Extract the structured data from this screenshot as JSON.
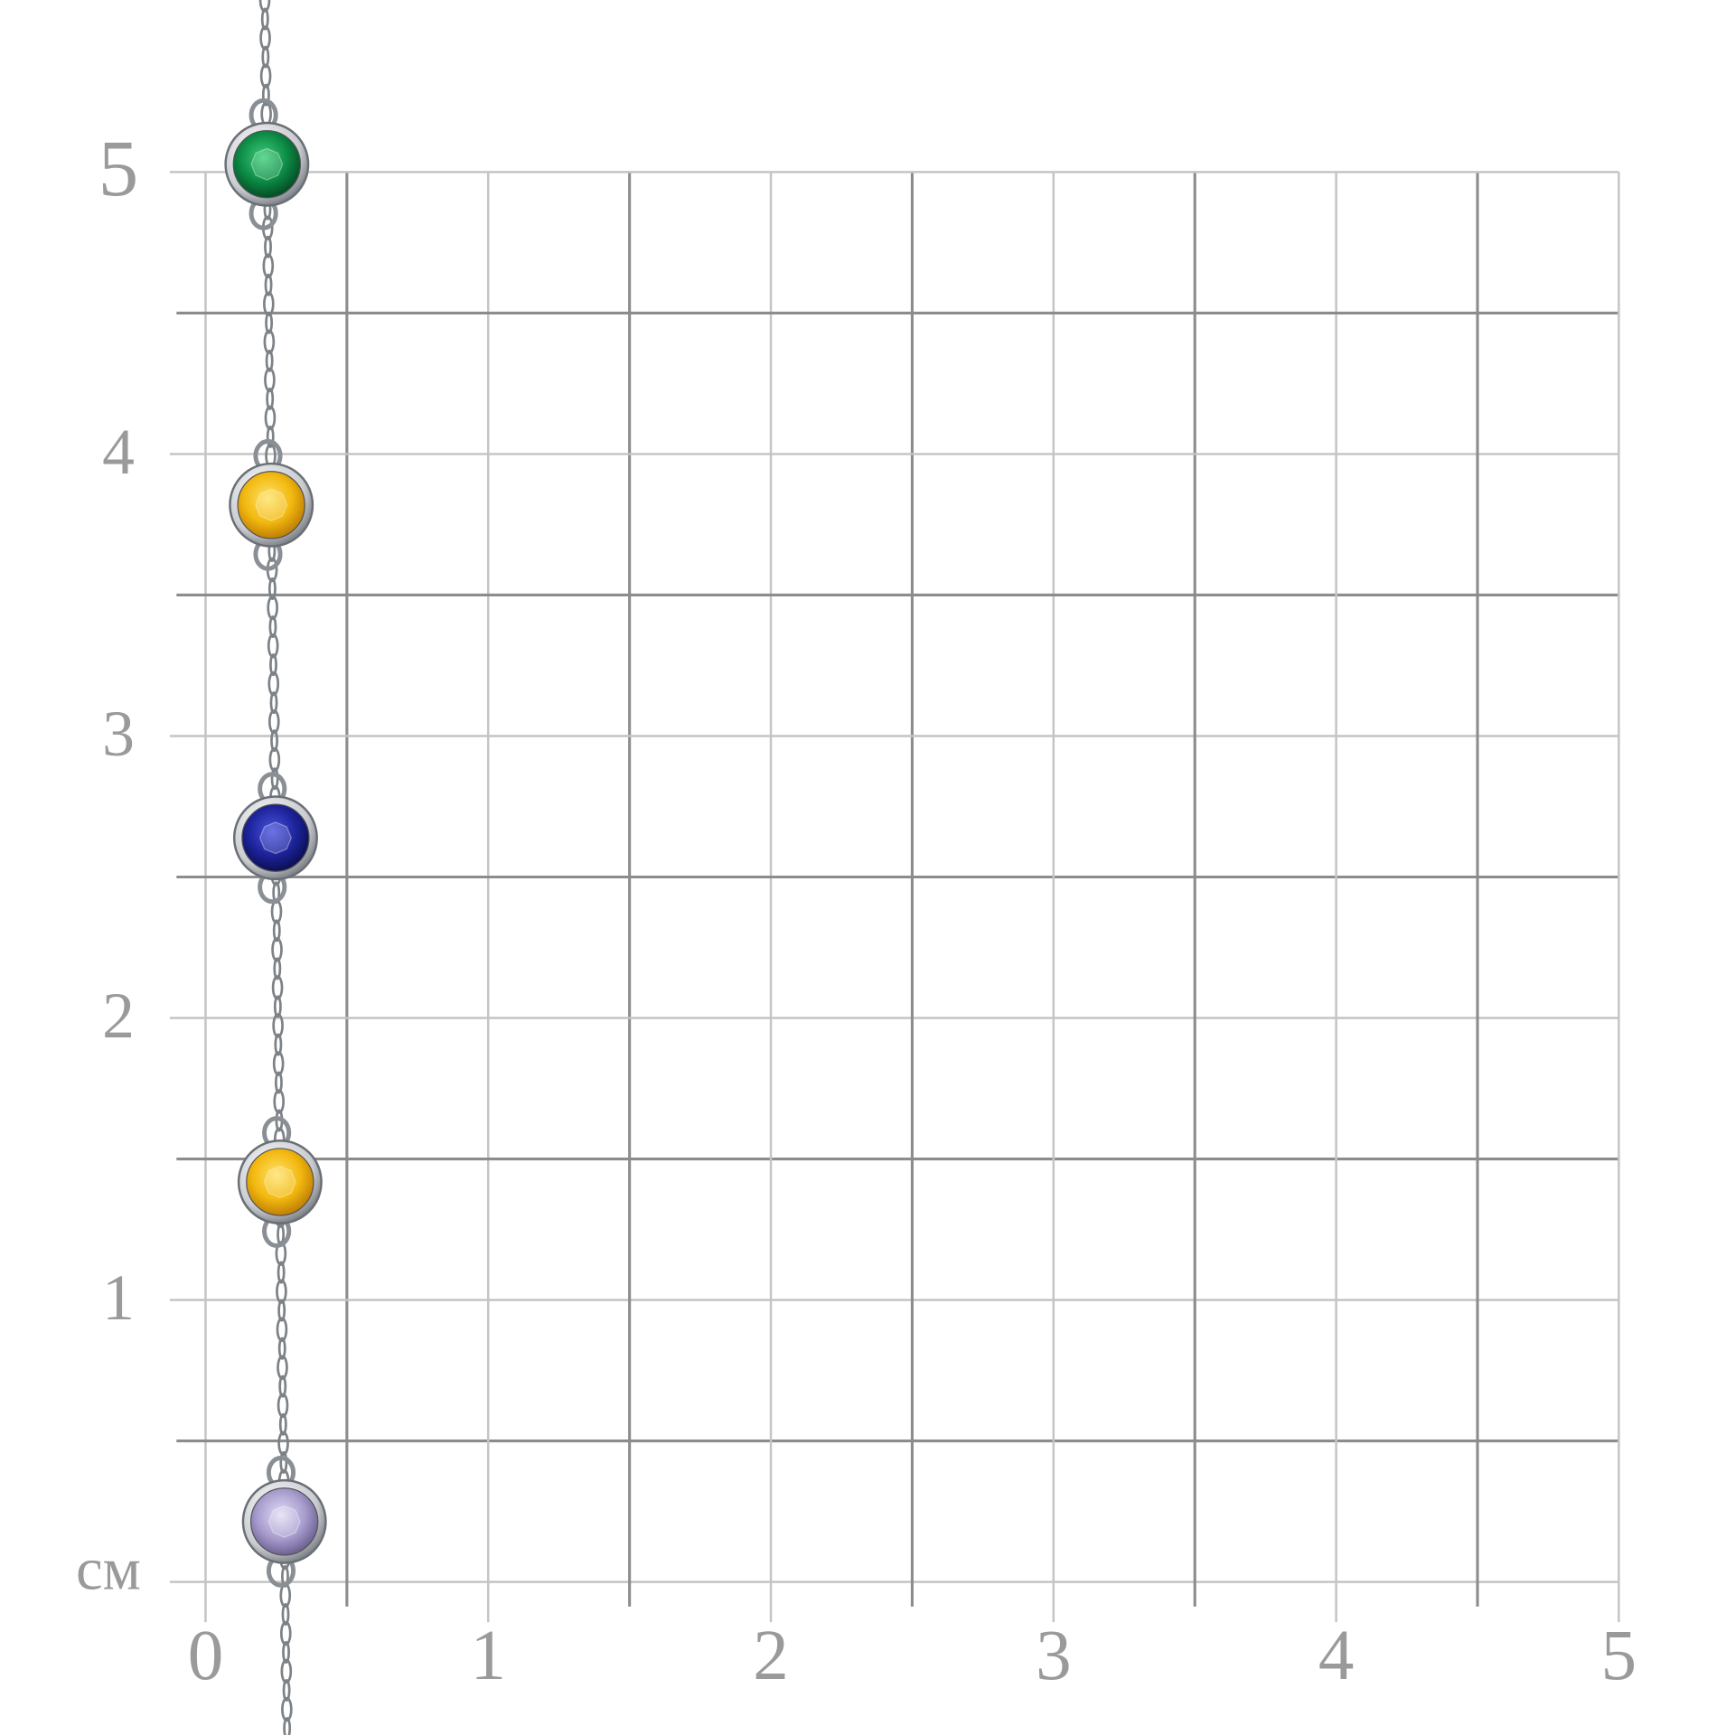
{
  "axes": {
    "y_labels": [
      "5",
      "4",
      "3",
      "2",
      "1"
    ],
    "unit": "см",
    "x_labels": [
      "0",
      "1",
      "2",
      "3",
      "4",
      "5"
    ]
  }
}
